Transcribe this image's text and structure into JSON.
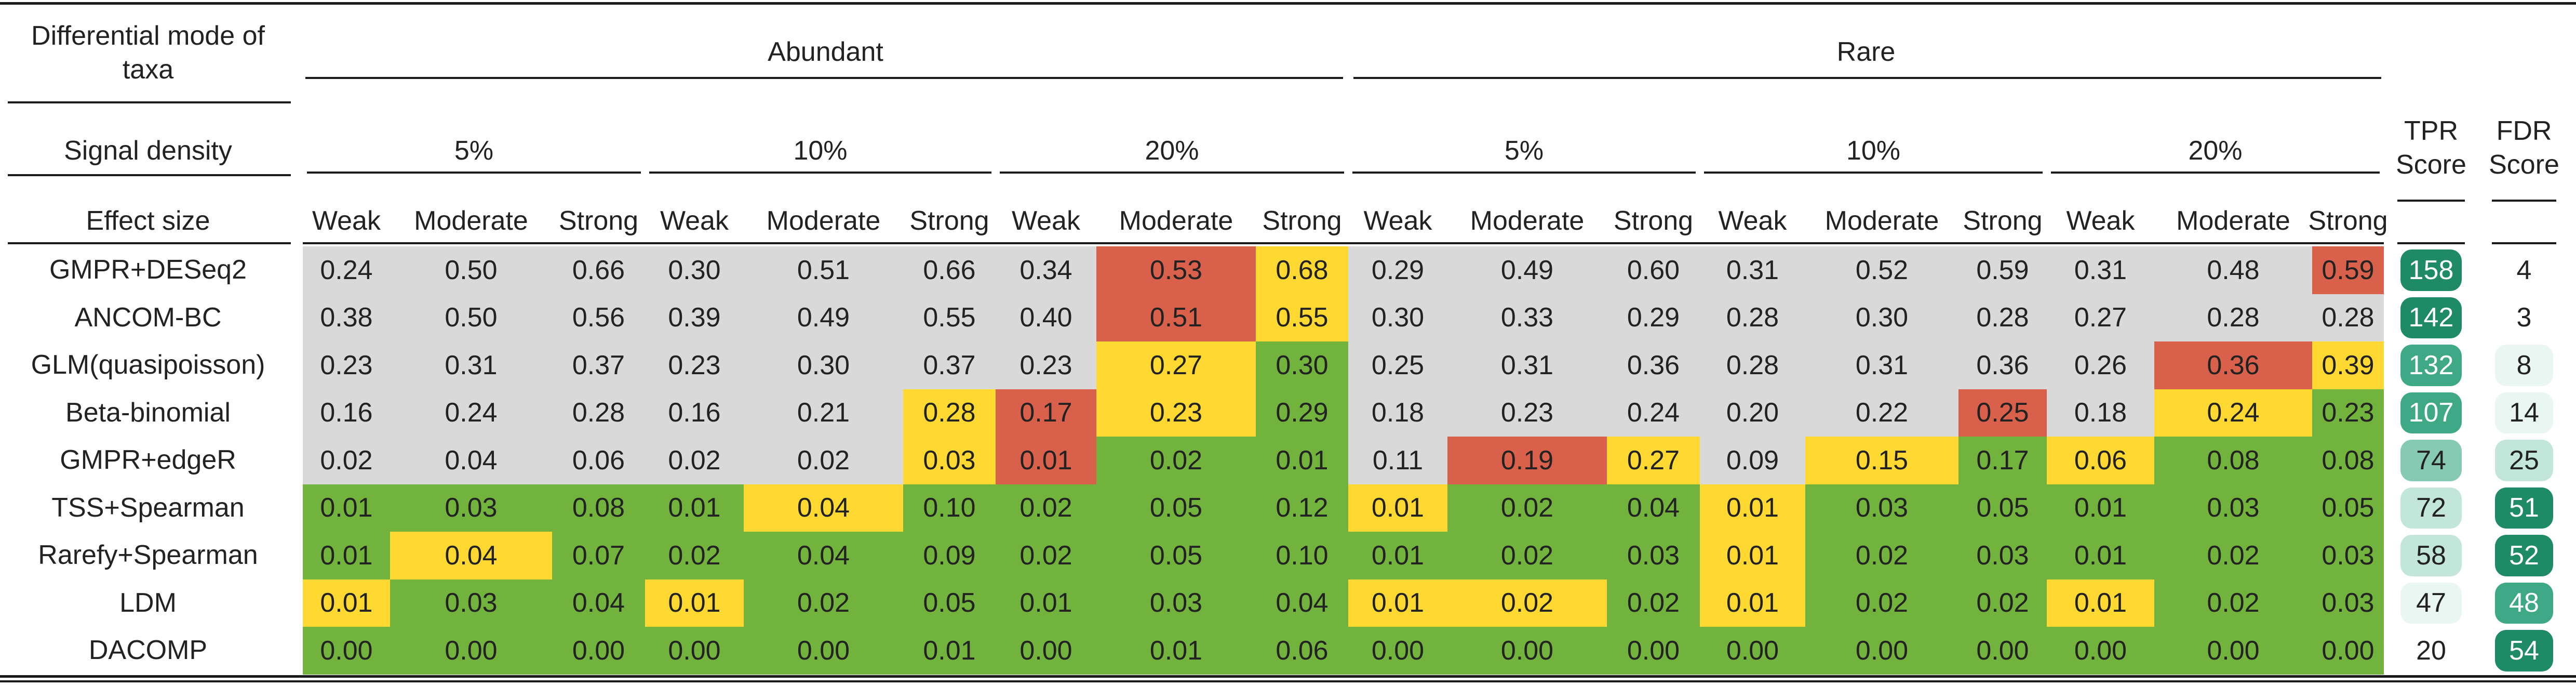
{
  "header": {
    "mode_label": "Differential mode of taxa",
    "density_label": "Signal density",
    "effect_label": "Effect size",
    "abundant": "Abundant",
    "rare": "Rare",
    "densities": [
      "5%",
      "10%",
      "20%",
      "5%",
      "10%",
      "20%"
    ],
    "effects": [
      "Weak",
      "Moderate",
      "Strong",
      "Weak",
      "Moderate",
      "Strong",
      "Weak",
      "Moderate",
      "Strong",
      "Weak",
      "Moderate",
      "Strong",
      "Weak",
      "Moderate",
      "Strong",
      "Weak",
      "Moderate",
      "Strong"
    ],
    "tpr_label": "TPR Score",
    "fdr_label": "FDR Score"
  },
  "colors": {
    "grey": "#d9d9d9",
    "red": "#d9604b",
    "yellow": "#ffd832",
    "green": "#72b33d",
    "score_scale": [
      "#eaf6f1",
      "#c3e6da",
      "#86cab3",
      "#3fa886",
      "#1f8a66"
    ]
  },
  "rows": [
    {
      "method": "GMPR+DESeq2",
      "values": [
        "0.24",
        "0.50",
        "0.66",
        "0.30",
        "0.51",
        "0.66",
        "0.34",
        "0.53",
        "0.68",
        "0.29",
        "0.49",
        "0.60",
        "0.31",
        "0.52",
        "0.59",
        "0.31",
        "0.48",
        "0.59"
      ],
      "colors": [
        "grey",
        "grey",
        "grey",
        "grey",
        "grey",
        "grey",
        "grey",
        "red",
        "yellow",
        "grey",
        "grey",
        "grey",
        "grey",
        "grey",
        "grey",
        "grey",
        "grey",
        "red"
      ],
      "tpr": 158,
      "fdr": 4,
      "tpr_level": 4,
      "fdr_level": -1
    },
    {
      "method": "ANCOM-BC",
      "values": [
        "0.38",
        "0.50",
        "0.56",
        "0.39",
        "0.49",
        "0.55",
        "0.40",
        "0.51",
        "0.55",
        "0.30",
        "0.33",
        "0.29",
        "0.28",
        "0.30",
        "0.28",
        "0.27",
        "0.28",
        "0.28"
      ],
      "colors": [
        "grey",
        "grey",
        "grey",
        "grey",
        "grey",
        "grey",
        "grey",
        "red",
        "yellow",
        "grey",
        "grey",
        "grey",
        "grey",
        "grey",
        "grey",
        "grey",
        "grey",
        "grey"
      ],
      "tpr": 142,
      "fdr": 3,
      "tpr_level": 4,
      "fdr_level": -1
    },
    {
      "method": "GLM(quasipoisson)",
      "values": [
        "0.23",
        "0.31",
        "0.37",
        "0.23",
        "0.30",
        "0.37",
        "0.23",
        "0.27",
        "0.30",
        "0.25",
        "0.31",
        "0.36",
        "0.28",
        "0.31",
        "0.36",
        "0.26",
        "0.36",
        "0.39"
      ],
      "colors": [
        "grey",
        "grey",
        "grey",
        "grey",
        "grey",
        "grey",
        "grey",
        "yellow",
        "green",
        "grey",
        "grey",
        "grey",
        "grey",
        "grey",
        "grey",
        "grey",
        "red",
        "yellow"
      ],
      "tpr": 132,
      "fdr": 8,
      "tpr_level": 3,
      "fdr_level": 0
    },
    {
      "method": "Beta-binomial",
      "values": [
        "0.16",
        "0.24",
        "0.28",
        "0.16",
        "0.21",
        "0.28",
        "0.17",
        "0.23",
        "0.29",
        "0.18",
        "0.23",
        "0.24",
        "0.20",
        "0.22",
        "0.25",
        "0.18",
        "0.24",
        "0.23"
      ],
      "colors": [
        "grey",
        "grey",
        "grey",
        "grey",
        "grey",
        "yellow",
        "red",
        "yellow",
        "green",
        "grey",
        "grey",
        "grey",
        "grey",
        "grey",
        "red",
        "grey",
        "yellow",
        "green"
      ],
      "tpr": 107,
      "fdr": 14,
      "tpr_level": 3,
      "fdr_level": 0
    },
    {
      "method": "GMPR+edgeR",
      "values": [
        "0.02",
        "0.04",
        "0.06",
        "0.02",
        "0.02",
        "0.03",
        "0.01",
        "0.02",
        "0.01",
        "0.11",
        "0.19",
        "0.27",
        "0.09",
        "0.15",
        "0.17",
        "0.06",
        "0.08",
        "0.08"
      ],
      "colors": [
        "grey",
        "grey",
        "grey",
        "grey",
        "grey",
        "yellow",
        "red",
        "green",
        "green",
        "grey",
        "red",
        "yellow",
        "grey",
        "yellow",
        "green",
        "yellow",
        "green",
        "green"
      ],
      "tpr": 74,
      "fdr": 25,
      "tpr_level": 2,
      "fdr_level": 1
    },
    {
      "method": "TSS+Spearman",
      "values": [
        "0.01",
        "0.03",
        "0.08",
        "0.01",
        "0.04",
        "0.10",
        "0.02",
        "0.05",
        "0.12",
        "0.01",
        "0.02",
        "0.04",
        "0.01",
        "0.03",
        "0.05",
        "0.01",
        "0.03",
        "0.05"
      ],
      "colors": [
        "green",
        "green",
        "green",
        "green",
        "yellow",
        "green",
        "green",
        "green",
        "green",
        "yellow",
        "green",
        "green",
        "yellow",
        "green",
        "green",
        "green",
        "green",
        "green"
      ],
      "tpr": 72,
      "fdr": 51,
      "tpr_level": 1,
      "fdr_level": 4
    },
    {
      "method": "Rarefy+Spearman",
      "values": [
        "0.01",
        "0.04",
        "0.07",
        "0.02",
        "0.04",
        "0.09",
        "0.02",
        "0.05",
        "0.10",
        "0.01",
        "0.02",
        "0.03",
        "0.01",
        "0.02",
        "0.03",
        "0.01",
        "0.02",
        "0.03"
      ],
      "colors": [
        "green",
        "yellow",
        "green",
        "green",
        "green",
        "green",
        "green",
        "green",
        "green",
        "green",
        "green",
        "green",
        "yellow",
        "green",
        "green",
        "green",
        "green",
        "green"
      ],
      "tpr": 58,
      "fdr": 52,
      "tpr_level": 1,
      "fdr_level": 4
    },
    {
      "method": "LDM",
      "values": [
        "0.01",
        "0.03",
        "0.04",
        "0.01",
        "0.02",
        "0.05",
        "0.01",
        "0.03",
        "0.04",
        "0.01",
        "0.02",
        "0.02",
        "0.01",
        "0.02",
        "0.02",
        "0.01",
        "0.02",
        "0.03"
      ],
      "colors": [
        "yellow",
        "green",
        "green",
        "yellow",
        "green",
        "green",
        "green",
        "green",
        "green",
        "yellow",
        "yellow",
        "green",
        "yellow",
        "green",
        "green",
        "yellow",
        "green",
        "green"
      ],
      "tpr": 47,
      "fdr": 48,
      "tpr_level": 0,
      "fdr_level": 3
    },
    {
      "method": "DACOMP",
      "values": [
        "0.00",
        "0.00",
        "0.00",
        "0.00",
        "0.00",
        "0.01",
        "0.00",
        "0.01",
        "0.06",
        "0.00",
        "0.00",
        "0.00",
        "0.00",
        "0.00",
        "0.00",
        "0.00",
        "0.00",
        "0.00"
      ],
      "colors": [
        "green",
        "green",
        "green",
        "green",
        "green",
        "green",
        "green",
        "green",
        "green",
        "green",
        "green",
        "green",
        "green",
        "green",
        "green",
        "green",
        "green",
        "green"
      ],
      "tpr": 20,
      "fdr": 54,
      "tpr_level": -1,
      "fdr_level": 4
    }
  ]
}
